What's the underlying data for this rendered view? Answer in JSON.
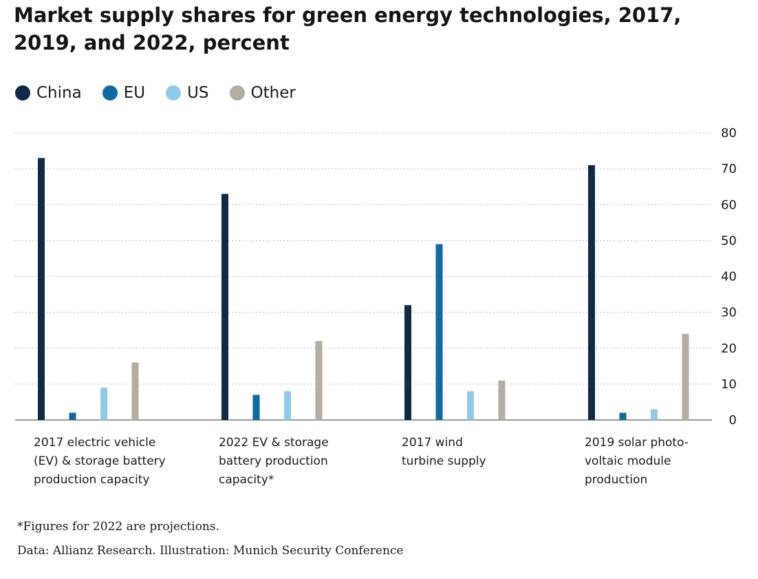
{
  "title": "Market supply shares for green energy technologies, 2017, 2019, and 2022, percent",
  "footnote": "*Figures for 2022 are projections.",
  "source": "Data: Allianz Research. Illustration: Munich Security Conference",
  "chart_data": {
    "type": "bar",
    "title": "Market supply shares for green energy technologies, 2017, 2019, and 2022, percent",
    "xlabel": "",
    "ylabel": "",
    "ylim": [
      0,
      80
    ],
    "yticks": [
      0,
      10,
      20,
      30,
      40,
      50,
      60,
      70,
      80
    ],
    "grid": true,
    "y_axis_side": "right",
    "legend_position": "top-left",
    "categories": [
      "2017 electric vehicle (EV) & storage battery production capacity",
      "2022 EV & storage battery production capacity*",
      "2017 wind turbine supply",
      "2019 solar photo-voltaic module production"
    ],
    "category_lines": [
      [
        "2017 electric vehicle",
        "(EV) & storage battery",
        "production capacity"
      ],
      [
        "2022 EV & storage",
        "battery production",
        "capacity*"
      ],
      [
        "2017 wind",
        "turbine supply"
      ],
      [
        "2019 solar photo-",
        "voltaic module",
        "production"
      ]
    ],
    "series": [
      {
        "name": "China",
        "color": "#0e2a45",
        "values": [
          73,
          63,
          32,
          71
        ]
      },
      {
        "name": "EU",
        "color": "#0e6aa5",
        "values": [
          2,
          7,
          49,
          2
        ]
      },
      {
        "name": "US",
        "color": "#8fcaec",
        "values": [
          9,
          8,
          8,
          3
        ]
      },
      {
        "name": "Other",
        "color": "#b5aca2",
        "values": [
          16,
          22,
          11,
          24
        ]
      }
    ]
  }
}
